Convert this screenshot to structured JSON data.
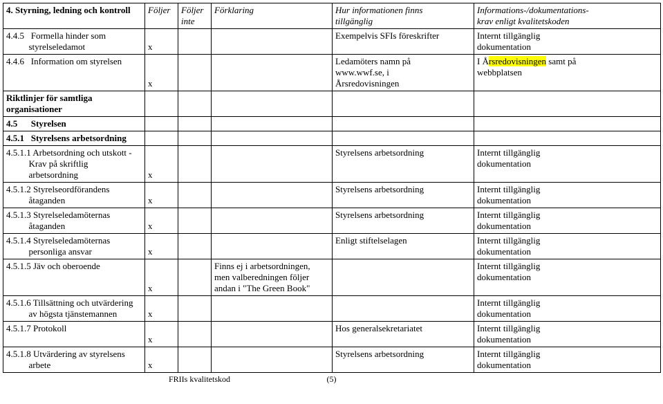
{
  "header": {
    "title": "4. Styrning, ledning och kontroll",
    "col2": "Följer",
    "col3_a": "Följer",
    "col3_b": "inte",
    "col4": "Förklaring",
    "col5_a": "Hur informationen finns",
    "col5_b": "tillgänglig",
    "col6_a": "Informations-/dokumentations-",
    "col6_b": "krav enligt kvalitetskoden"
  },
  "rows": {
    "r1": {
      "c1a": "4.4.5",
      "c1b": "Formella hinder som",
      "c1c": "styrelseledamot",
      "c2": "x",
      "c5": "Exempelvis SFIs föreskrifter",
      "c6a": "Internt tillgänglig",
      "c6b": "dokumentation"
    },
    "r2": {
      "c1a": "4.4.6",
      "c1b": "Information om styrelsen",
      "c2": "x",
      "c5a": "Ledamöters namn på",
      "c5b": "www.wwf.se, i",
      "c5c": "Årsredovisningen",
      "c6a": "I Å",
      "c6b": "rsredovisningen",
      "c6c": " samt på",
      "c6d": "webbplatsen"
    },
    "r3": {
      "c1a": "Riktlinjer för samtliga",
      "c1b": "organisationer"
    },
    "r4": {
      "c1a": "4.5",
      "c1b": "Styrelsen"
    },
    "r5": {
      "c1a": "4.5.1",
      "c1b": "Styrelsens arbetsordning"
    },
    "r6": {
      "c1a": "4.5.1.1 Arbetsordning och utskott -",
      "c1b": "Krav på skriftlig",
      "c1c": "arbetsordning",
      "c2": "x",
      "c5": "Styrelsens arbetsordning",
      "c6a": "Internt tillgänglig",
      "c6b": "dokumentation"
    },
    "r7": {
      "c1a": "4.5.1.2 Styrelseordförandens",
      "c1b": "åtaganden",
      "c2": "x",
      "c5": "Styrelsens arbetsordning",
      "c6a": "Internt tillgänglig",
      "c6b": "dokumentation"
    },
    "r8": {
      "c1a": "4.5.1.3 Styrelseledamöternas",
      "c1b": "åtaganden",
      "c2": "x",
      "c5": "Styrelsens arbetsordning",
      "c6a": "Internt tillgänglig",
      "c6b": "dokumentation"
    },
    "r9": {
      "c1a": "4.5.1.4 Styrelseledamöternas",
      "c1b": "personliga ansvar",
      "c2": "x",
      "c5": "Enligt stiftelselagen",
      "c6a": "Internt tillgänglig",
      "c6b": "dokumentation"
    },
    "r10": {
      "c1a": "4.5.1.5 Jäv och oberoende",
      "c2": "x",
      "c4a": "Finns ej i arbetsordningen,",
      "c4b": "men valberedningen följer",
      "c4c": "andan i \"The Green Book\"",
      "c6a": "Internt tillgänglig",
      "c6b": "dokumentation"
    },
    "r11": {
      "c1a": "4.5.1.6 Tillsättning och utvärdering",
      "c1b": "av högsta tjänstemannen",
      "c2": "x",
      "c6a": "Internt tillgänglig",
      "c6b": "dokumentation"
    },
    "r12": {
      "c1a": "4.5.1.7 Protokoll",
      "c2": "x",
      "c5": "Hos generalsekretariatet",
      "c6a": "Internt tillgänglig",
      "c6b": "dokumentation"
    },
    "r13": {
      "c1a": "4.5.1.8 Utvärdering av styrelsens",
      "c1b": "arbete",
      "c2": "x",
      "c5": "Styrelsens arbetsordning",
      "c6a": "Internt tillgänglig",
      "c6b": "dokumentation"
    }
  },
  "footer": {
    "left": "FRIIs kvalitetskod",
    "center": "(5)"
  }
}
